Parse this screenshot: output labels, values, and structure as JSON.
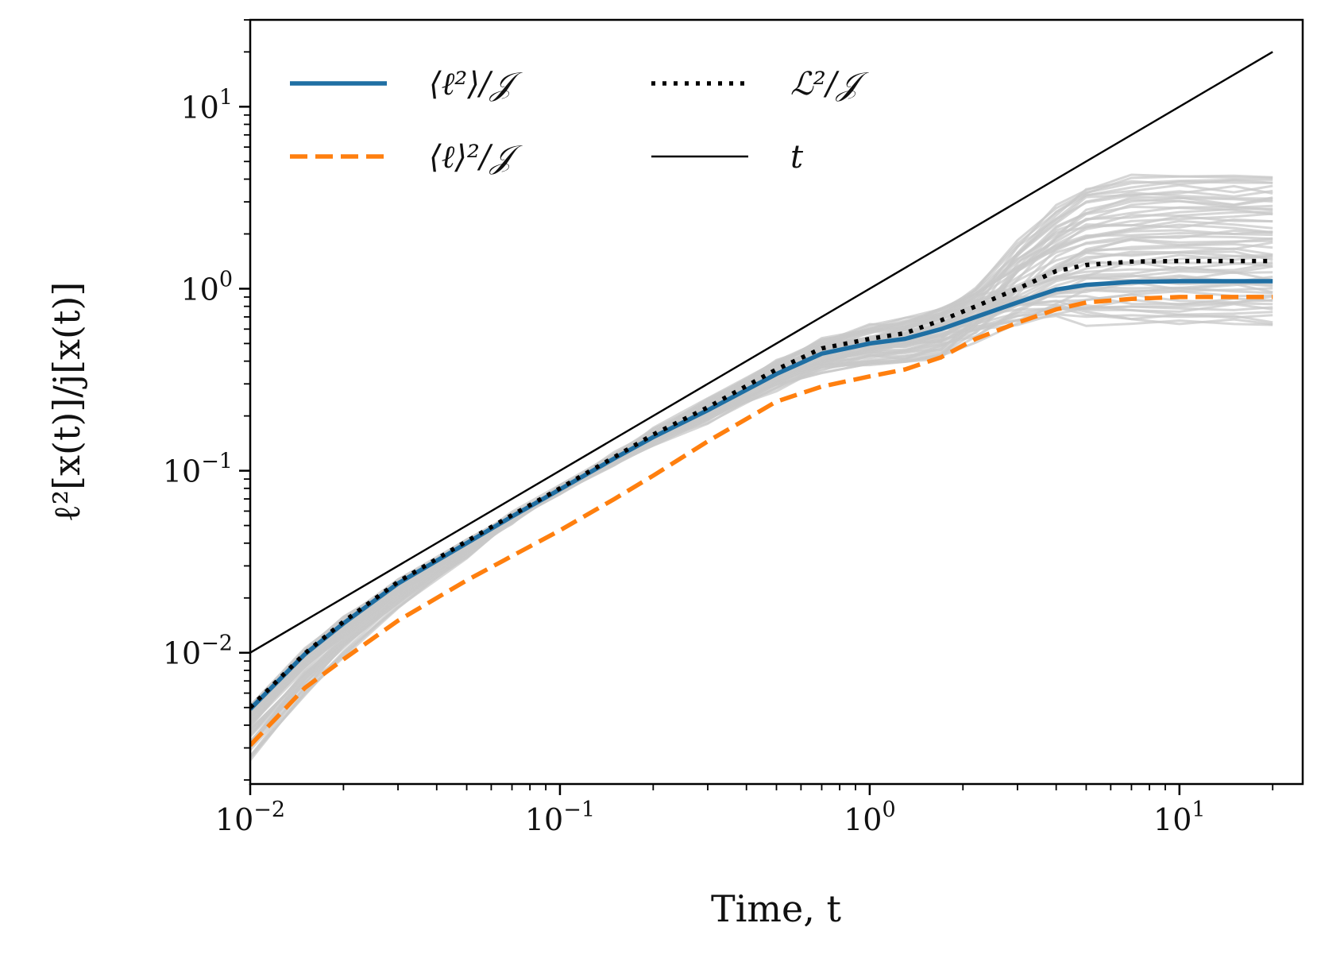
{
  "chart_data": {
    "type": "line",
    "xscale": "log",
    "yscale": "log",
    "xlim": [
      0.01,
      25
    ],
    "ylim": [
      0.0019,
      30
    ],
    "xlabel": "Time, t",
    "ylabel": "ℓ²[x(t)]/j[x(t)]",
    "grid": false,
    "legend_position": "top-left",
    "x_ticks": [
      {
        "value": 0.01,
        "base": "10",
        "exp": "−2"
      },
      {
        "value": 0.1,
        "base": "10",
        "exp": "−1"
      },
      {
        "value": 1,
        "base": "10",
        "exp": "0"
      },
      {
        "value": 10,
        "base": "10",
        "exp": "1"
      }
    ],
    "y_ticks": [
      {
        "value": 0.01,
        "base": "10",
        "exp": "−2"
      },
      {
        "value": 0.1,
        "base": "10",
        "exp": "−1"
      },
      {
        "value": 1,
        "base": "10",
        "exp": "0"
      },
      {
        "value": 10,
        "base": "10",
        "exp": "1"
      }
    ],
    "x": [
      0.01,
      0.015,
      0.02,
      0.03,
      0.05,
      0.07,
      0.1,
      0.15,
      0.2,
      0.3,
      0.5,
      0.7,
      1.0,
      1.3,
      1.7,
      2.2,
      3.0,
      4.0,
      5.0,
      7.0,
      10.0,
      15.0,
      20.0
    ],
    "series": [
      {
        "name": "⟨ℓ²⟩/𝒥",
        "style": "solid",
        "color": "#1f6fa3",
        "values": [
          0.0049,
          0.0098,
          0.0145,
          0.024,
          0.04,
          0.056,
          0.079,
          0.117,
          0.153,
          0.215,
          0.34,
          0.44,
          0.5,
          0.53,
          0.6,
          0.7,
          0.84,
          0.99,
          1.05,
          1.09,
          1.1,
          1.1,
          1.1
        ]
      },
      {
        "name": "⟨ℓ⟩²/𝒥",
        "style": "dashed",
        "color": "#ff7f0e",
        "values": [
          0.0031,
          0.0064,
          0.0092,
          0.015,
          0.025,
          0.034,
          0.047,
          0.07,
          0.094,
          0.145,
          0.24,
          0.29,
          0.33,
          0.36,
          0.42,
          0.53,
          0.65,
          0.77,
          0.84,
          0.88,
          0.9,
          0.9,
          0.9
        ]
      },
      {
        "name": "ℒ²/𝒥",
        "style": "dotted",
        "color": "#000000",
        "values": [
          0.005,
          0.0099,
          0.0148,
          0.0245,
          0.041,
          0.057,
          0.08,
          0.119,
          0.158,
          0.223,
          0.36,
          0.47,
          0.53,
          0.57,
          0.67,
          0.8,
          1.0,
          1.25,
          1.35,
          1.41,
          1.42,
          1.42,
          1.42
        ]
      },
      {
        "name": "t",
        "style": "solid-thin",
        "color": "#000000",
        "x": [
          0.01,
          20
        ],
        "values": [
          0.01,
          20
        ]
      }
    ],
    "background_trajectories": {
      "color": "#c8c8c8",
      "count": 60,
      "final_value_range": [
        0.65,
        4.2
      ]
    }
  }
}
